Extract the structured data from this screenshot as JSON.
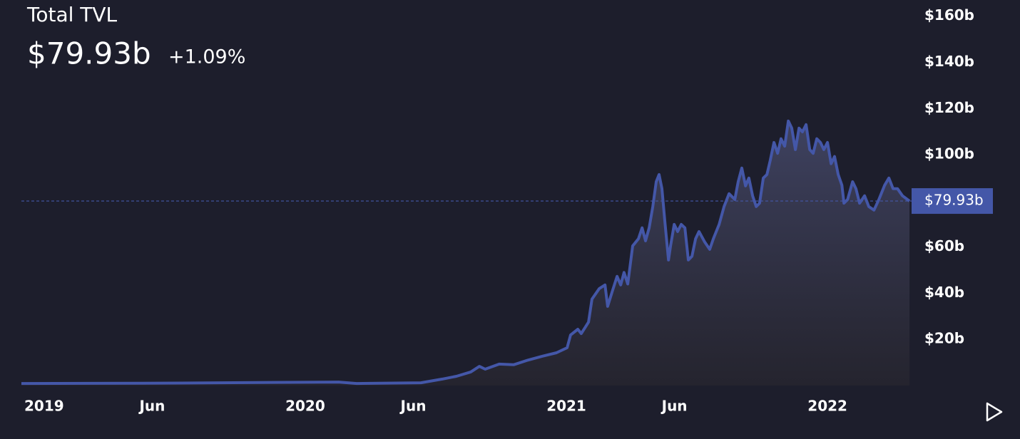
{
  "chart_data": {
    "type": "line",
    "title": "Total TVL",
    "current_value": 79.93,
    "current_label": "$79.93b",
    "change_label": "+1.09%",
    "change_color": "#1f9a3c",
    "x": [
      2018.913,
      2019.377,
      2020.128,
      2020.197,
      2020.443,
      2020.525,
      2020.579,
      2020.634,
      2020.667,
      2020.689,
      2020.743,
      2020.798,
      2020.852,
      2020.907,
      2020.962,
      2021.003,
      2021.016,
      2021.044,
      2021.057,
      2021.085,
      2021.098,
      2021.126,
      2021.148,
      2021.158,
      2021.175,
      2021.194,
      2021.208,
      2021.221,
      2021.235,
      2021.254,
      2021.276,
      2021.29,
      2021.303,
      2021.317,
      2021.331,
      2021.344,
      2021.355,
      2021.366,
      2021.377,
      2021.391,
      2021.399,
      2021.413,
      2021.426,
      2021.44,
      2021.454,
      2021.467,
      2021.481,
      2021.495,
      2021.508,
      2021.53,
      2021.549,
      2021.563,
      2021.585,
      2021.604,
      2021.623,
      2021.645,
      2021.658,
      2021.672,
      2021.686,
      2021.699,
      2021.713,
      2021.727,
      2021.74,
      2021.754,
      2021.768,
      2021.781,
      2021.795,
      2021.809,
      2021.822,
      2021.836,
      2021.85,
      2021.863,
      2021.877,
      2021.891,
      2021.904,
      2021.918,
      2021.932,
      2021.945,
      2021.959,
      2021.973,
      2021.986,
      2022.0,
      2022.014,
      2022.027,
      2022.041,
      2022.055,
      2022.063,
      2022.077,
      2022.096,
      2022.109,
      2022.123,
      2022.142,
      2022.158,
      2022.178,
      2022.197,
      2022.219,
      2022.235,
      2022.251,
      2022.268,
      2022.287,
      2022.314
    ],
    "series": [
      {
        "color": "#4457a8",
        "values": [
          0.9,
          1.0,
          1.5,
          0.9,
          1.2,
          2.8,
          4,
          5.9,
          8.3,
          7.1,
          9.3,
          9,
          11,
          12.7,
          14.2,
          16.4,
          21.9,
          24.4,
          22.5,
          27.5,
          37.4,
          42,
          43.6,
          34.3,
          40.5,
          47.3,
          43.6,
          49,
          44,
          60.5,
          63.6,
          68.3,
          62.7,
          68.3,
          77.5,
          88.3,
          91.4,
          85.3,
          71.4,
          54.4,
          60.5,
          69.8,
          66.7,
          69.8,
          68.3,
          54.4,
          56,
          63.6,
          66.7,
          62.1,
          59,
          63.6,
          69.8,
          77.5,
          83.1,
          80.6,
          88.3,
          94.2,
          86.5,
          89.9,
          82.2,
          77.5,
          79,
          89.9,
          91.4,
          97.6,
          105.3,
          100.6,
          106.9,
          103.7,
          114.6,
          111.5,
          102.2,
          111.5,
          109.9,
          113,
          102.2,
          100.6,
          106.9,
          105.3,
          102.2,
          105.3,
          96.1,
          99.2,
          91.4,
          86.8,
          79,
          80.6,
          88.3,
          85.3,
          79,
          82.2,
          77.5,
          76,
          80.6,
          86.8,
          89.9,
          85.3,
          85.3,
          82.2,
          79.93
        ]
      }
    ],
    "xlim": [
      2018.913,
      2022.322
    ],
    "xticks": [
      {
        "value": 2019,
        "label": "2019"
      },
      {
        "value": 2019.414,
        "label": "Jun"
      },
      {
        "value": 2020,
        "label": "2020"
      },
      {
        "value": 2020.414,
        "label": "Jun"
      },
      {
        "value": 2021,
        "label": "2021"
      },
      {
        "value": 2021.414,
        "label": "Jun"
      },
      {
        "value": 2022,
        "label": "2022"
      }
    ],
    "ylim": [
      0,
      167
    ],
    "yticks": [
      {
        "value": 20,
        "label": "$20b"
      },
      {
        "value": 40,
        "label": "$40b"
      },
      {
        "value": 60,
        "label": "$60b"
      },
      {
        "value": 100,
        "label": "$100b"
      },
      {
        "value": 120,
        "label": "$120b"
      },
      {
        "value": 140,
        "label": "$140b"
      },
      {
        "value": 160,
        "label": "$160b"
      }
    ],
    "grid": false
  }
}
